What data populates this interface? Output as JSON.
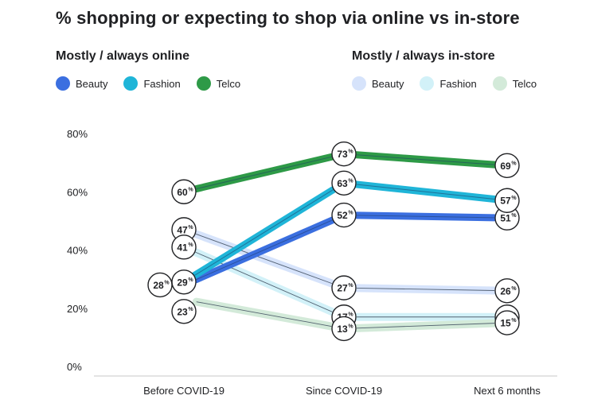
{
  "title": "% shopping or expecting to shop via online vs in-store",
  "legends": {
    "online": {
      "title": "Mostly / always online",
      "items": [
        {
          "name": "Beauty",
          "color": "#3b6fe0"
        },
        {
          "name": "Fashion",
          "color": "#1fb5d8"
        },
        {
          "name": "Telco",
          "color": "#2e9a47"
        }
      ]
    },
    "instore": {
      "title": "Mostly / always in-store",
      "items": [
        {
          "name": "Beauty",
          "color": "#d6e3fb"
        },
        {
          "name": "Fashion",
          "color": "#d2f1f8"
        },
        {
          "name": "Telco",
          "color": "#d3ead9"
        }
      ]
    }
  },
  "chart_data": {
    "type": "line",
    "categories": [
      "Before COVID-19",
      "Since COVID-19",
      "Next 6 months"
    ],
    "ylim": [
      0,
      80
    ],
    "yticks": [
      "0%",
      "20%",
      "40%",
      "60%",
      "80%"
    ],
    "unit": "%",
    "series": [
      {
        "name": "Beauty",
        "group": "online",
        "color": "#3b6fe0",
        "values": [
          28,
          52,
          51
        ]
      },
      {
        "name": "Fashion",
        "group": "online",
        "color": "#1fb5d8",
        "values": [
          29,
          63,
          57
        ]
      },
      {
        "name": "Telco",
        "group": "online",
        "color": "#2e9a47",
        "values": [
          60,
          73,
          69
        ]
      },
      {
        "name": "Beauty",
        "group": "in-store",
        "color": "#d6e3fb",
        "values": [
          47,
          27,
          26
        ]
      },
      {
        "name": "Fashion",
        "group": "in-store",
        "color": "#d2f1f8",
        "values": [
          41,
          17,
          17
        ]
      },
      {
        "name": "Telco",
        "group": "in-store",
        "color": "#d3ead9",
        "values": [
          23,
          13,
          15
        ]
      }
    ]
  }
}
